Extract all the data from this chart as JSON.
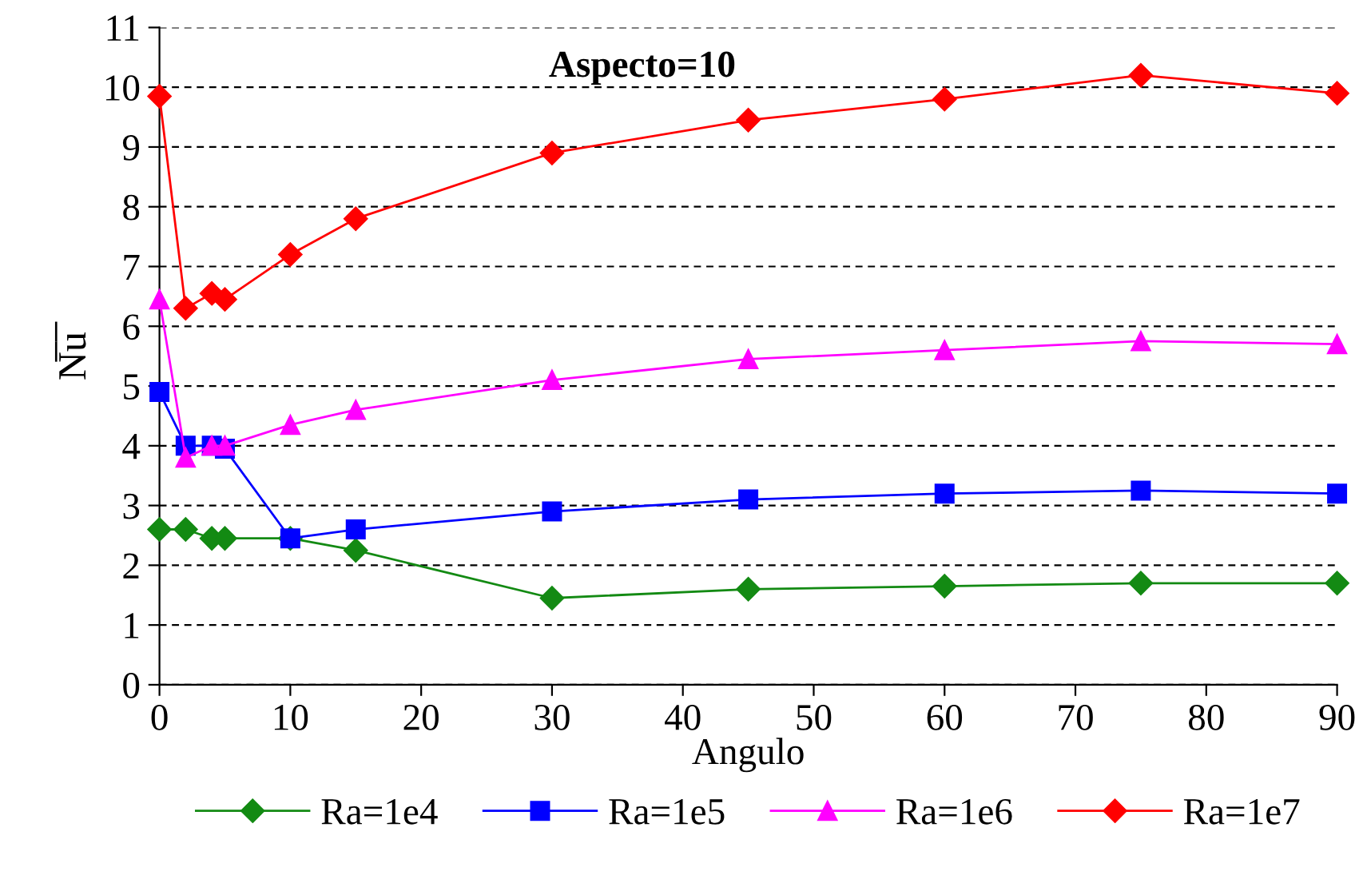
{
  "chart_data": {
    "type": "line",
    "title": "Aspecto=10",
    "xlabel": "Angulo",
    "ylabel": "N̅u̅",
    "x": [
      0,
      2,
      4,
      5,
      10,
      15,
      30,
      45,
      60,
      75,
      90
    ],
    "series": [
      {
        "name": "Ra=1e4",
        "color": "#138a13",
        "marker": "diamond",
        "values": [
          2.6,
          2.6,
          2.45,
          2.45,
          2.45,
          2.25,
          1.45,
          1.6,
          1.65,
          1.7,
          1.7
        ]
      },
      {
        "name": "Ra=1e5",
        "color": "#0000ff",
        "marker": "square",
        "values": [
          4.9,
          4.0,
          4.0,
          3.95,
          2.45,
          2.6,
          2.9,
          3.1,
          3.2,
          3.25,
          3.2
        ]
      },
      {
        "name": "Ra=1e6",
        "color": "#ff00ff",
        "marker": "triangle",
        "values": [
          6.45,
          3.8,
          4.0,
          4.0,
          4.35,
          4.6,
          5.1,
          5.45,
          5.6,
          5.75,
          5.7
        ]
      },
      {
        "name": "Ra=1e7",
        "color": "#ff0000",
        "marker": "diamond",
        "values": [
          9.85,
          6.3,
          6.55,
          6.45,
          7.2,
          7.8,
          8.9,
          9.45,
          9.8,
          10.2,
          9.9
        ]
      }
    ],
    "xlim": [
      0,
      90
    ],
    "xticks": [
      0,
      10,
      20,
      30,
      40,
      50,
      60,
      70,
      80,
      90
    ],
    "ylim": [
      0,
      11
    ],
    "yticks": [
      0,
      1,
      2,
      3,
      4,
      5,
      6,
      7,
      8,
      9,
      10,
      11
    ],
    "grid": "y",
    "legend": "bottom",
    "line_style": "solid"
  }
}
